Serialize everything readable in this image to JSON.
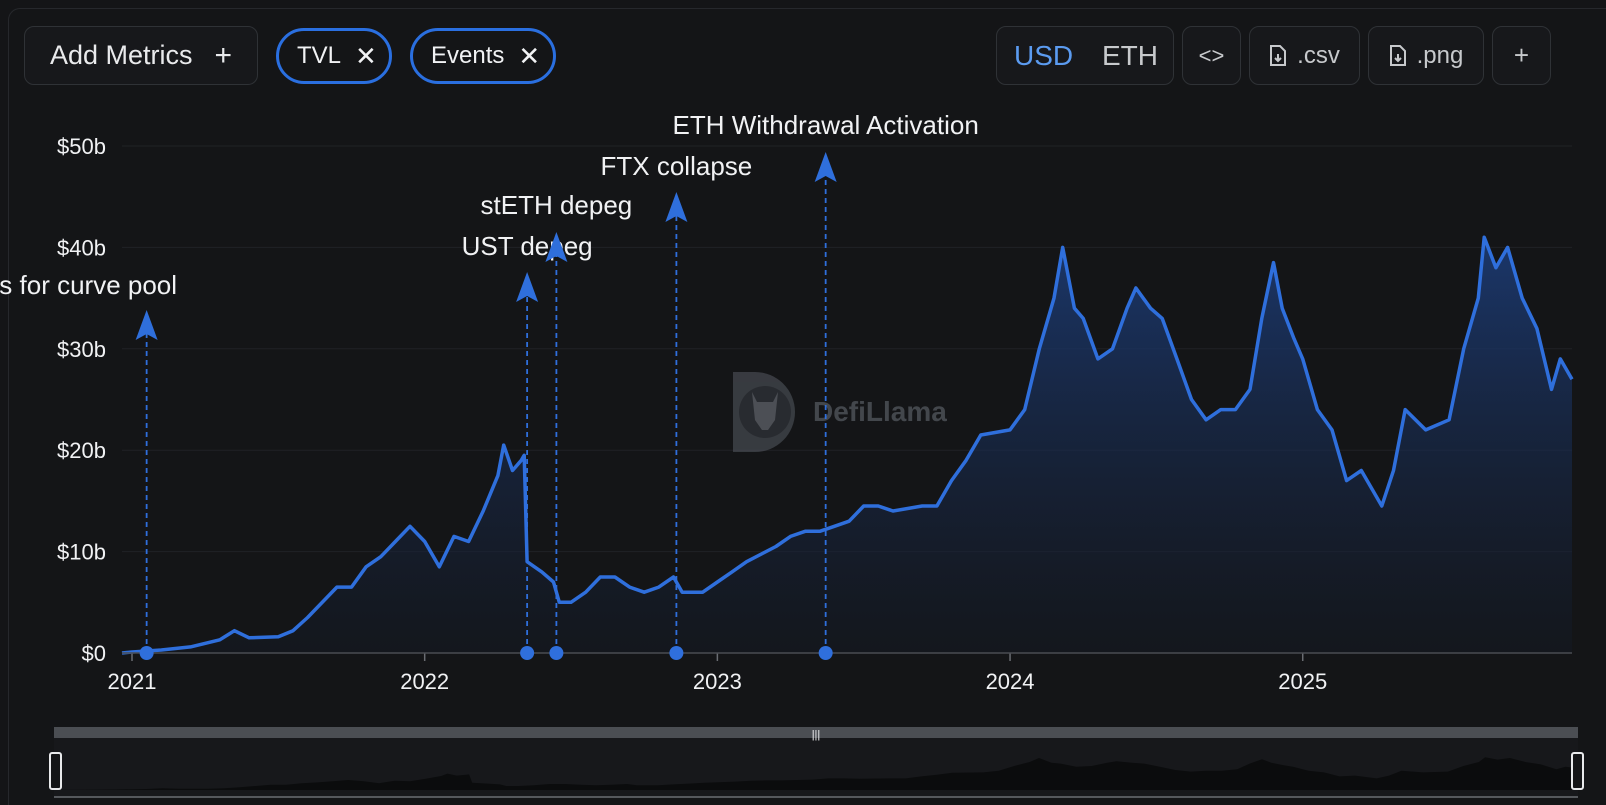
{
  "toolbar": {
    "add_metrics_label": "Add Metrics",
    "pills": [
      {
        "label": "TVL"
      },
      {
        "label": "Events"
      }
    ],
    "currency": {
      "options": [
        "USD",
        "ETH"
      ],
      "selected": "USD"
    },
    "embed_icon": "code-icon",
    "csv_label": ".csv",
    "png_label": ".png",
    "add_icon": "plus-icon"
  },
  "colors": {
    "accent": "#2a6fe0",
    "line": "#2f6fdc",
    "background": "#141517",
    "grid": "#24262a",
    "text": "#f1f2f4",
    "inactive_text": "#c7c9cc",
    "selected_text": "#5b9bf0"
  },
  "watermark": {
    "text": "DefiLlama",
    "icon": "llama-logo-icon"
  },
  "chart_data": {
    "type": "area",
    "ylim": [
      0,
      50
    ],
    "y_ticks": [
      "$0",
      "$10b",
      "$20b",
      "$30b",
      "$40b",
      "$50b"
    ],
    "x_ticks": [
      "2021",
      "2022",
      "2023",
      "2024",
      "2025"
    ],
    "series": [
      {
        "values": [
          [
            2021.0,
            0.1
          ],
          [
            2021.1,
            0.3
          ],
          [
            2021.2,
            0.6
          ],
          [
            2021.3,
            1.3
          ],
          [
            2021.35,
            2.2
          ],
          [
            2021.4,
            1.5
          ],
          [
            2021.5,
            1.6
          ],
          [
            2021.55,
            2.2
          ],
          [
            2021.6,
            3.5
          ],
          [
            2021.7,
            6.5
          ],
          [
            2021.75,
            6.5
          ],
          [
            2021.8,
            8.5
          ],
          [
            2021.85,
            9.5
          ],
          [
            2021.9,
            11.0
          ],
          [
            2021.95,
            12.5
          ],
          [
            2022.0,
            11.0
          ],
          [
            2022.05,
            8.5
          ],
          [
            2022.1,
            11.5
          ],
          [
            2022.15,
            11.0
          ],
          [
            2022.2,
            14.0
          ],
          [
            2022.25,
            17.5
          ],
          [
            2022.27,
            20.5
          ],
          [
            2022.3,
            18.0
          ],
          [
            2022.33,
            19.0
          ],
          [
            2022.34,
            19.5
          ],
          [
            2022.35,
            9.0
          ],
          [
            2022.4,
            8.0
          ],
          [
            2022.44,
            7.0
          ],
          [
            2022.46,
            5.0
          ],
          [
            2022.5,
            5.0
          ],
          [
            2022.55,
            6.0
          ],
          [
            2022.6,
            7.5
          ],
          [
            2022.65,
            7.5
          ],
          [
            2022.7,
            6.5
          ],
          [
            2022.75,
            6.0
          ],
          [
            2022.8,
            6.5
          ],
          [
            2022.85,
            7.5
          ],
          [
            2022.88,
            6.0
          ],
          [
            2022.95,
            6.0
          ],
          [
            2023.0,
            7.0
          ],
          [
            2023.05,
            8.0
          ],
          [
            2023.1,
            9.0
          ],
          [
            2023.2,
            10.5
          ],
          [
            2023.25,
            11.5
          ],
          [
            2023.3,
            12.0
          ],
          [
            2023.35,
            12.0
          ],
          [
            2023.4,
            12.5
          ],
          [
            2023.45,
            13.0
          ],
          [
            2023.5,
            14.5
          ],
          [
            2023.55,
            14.5
          ],
          [
            2023.6,
            14.0
          ],
          [
            2023.7,
            14.5
          ],
          [
            2023.75,
            14.5
          ],
          [
            2023.8,
            17.0
          ],
          [
            2023.85,
            19.0
          ],
          [
            2023.9,
            21.5
          ],
          [
            2024.0,
            22.0
          ],
          [
            2024.05,
            24.0
          ],
          [
            2024.1,
            30.0
          ],
          [
            2024.15,
            35.0
          ],
          [
            2024.18,
            40.0
          ],
          [
            2024.22,
            34.0
          ],
          [
            2024.25,
            33.0
          ],
          [
            2024.3,
            29.0
          ],
          [
            2024.35,
            30.0
          ],
          [
            2024.4,
            34.0
          ],
          [
            2024.43,
            36.0
          ],
          [
            2024.48,
            34.0
          ],
          [
            2024.52,
            33.0
          ],
          [
            2024.57,
            29.0
          ],
          [
            2024.62,
            25.0
          ],
          [
            2024.67,
            23.0
          ],
          [
            2024.72,
            24.0
          ],
          [
            2024.77,
            24.0
          ],
          [
            2024.82,
            26.0
          ],
          [
            2024.86,
            33.0
          ],
          [
            2024.9,
            38.5
          ],
          [
            2024.93,
            34.0
          ],
          [
            2024.97,
            31.0
          ],
          [
            2025.0,
            29.0
          ],
          [
            2025.05,
            24.0
          ],
          [
            2025.1,
            22.0
          ],
          [
            2025.15,
            17.0
          ],
          [
            2025.2,
            18.0
          ],
          [
            2025.27,
            14.5
          ],
          [
            2025.31,
            18.0
          ],
          [
            2025.35,
            24.0
          ],
          [
            2025.42,
            22.0
          ],
          [
            2025.5,
            23.0
          ],
          [
            2025.55,
            30.0
          ],
          [
            2025.6,
            35.0
          ],
          [
            2025.62,
            41.0
          ],
          [
            2025.66,
            38.0
          ],
          [
            2025.7,
            40.0
          ],
          [
            2025.75,
            35.0
          ],
          [
            2025.8,
            32.0
          ],
          [
            2025.85,
            26.0
          ],
          [
            2025.88,
            29.0
          ],
          [
            2025.92,
            27.0
          ]
        ]
      }
    ],
    "events": [
      {
        "label": "f incentives for curve pool",
        "x": 2021.05
      },
      {
        "label": "UST depeg",
        "x": 2022.35
      },
      {
        "label": "stETH depeg",
        "x": 2022.45
      },
      {
        "label": "FTX collapse",
        "x": 2022.86
      },
      {
        "label": "ETH Withdrawal Activation",
        "x": 2023.37
      }
    ]
  }
}
